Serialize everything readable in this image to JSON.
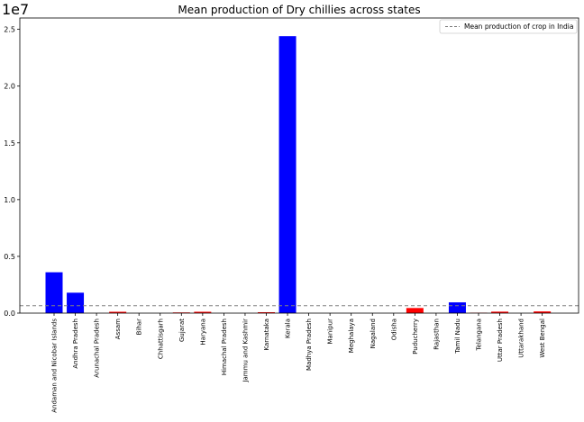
{
  "chart_data": {
    "type": "bar",
    "title": "Mean production of Dry chillies across states",
    "xlabel": "",
    "ylabel": "",
    "y_scale_label": "1e7",
    "y_scale_factor": 10000000,
    "ylim": [
      0,
      2.6
    ],
    "yticks": [
      "0.0",
      "0.5",
      "1.0",
      "1.5",
      "2.0",
      "2.5"
    ],
    "categories": [
      "Andaman and Nicobar Islands",
      "Andhra Pradesh",
      "Arunachal Pradesh",
      "Assam",
      "Bihar",
      "Chhattisgarh",
      "Gujarat",
      "Haryana",
      "Himachal Pradesh",
      "Jammu and Kashmir",
      "Karnataka",
      "Kerala",
      "Madhya Pradesh",
      "Manipur",
      "Meghalaya",
      "Nagaland",
      "Odisha",
      "Puducherry",
      "Rajasthan",
      "Tamil Nadu",
      "Telangana",
      "Uttar Pradesh",
      "Uttarakhand",
      "West Bengal"
    ],
    "values": [
      0.36,
      0.18,
      0,
      0.012,
      0,
      0,
      0.006,
      0.012,
      0,
      0,
      0.008,
      2.44,
      0,
      0,
      0,
      0,
      0,
      0.045,
      0,
      0.095,
      0.004,
      0.013,
      0,
      0.015
    ],
    "bar_colors": [
      "#0000ff",
      "#0000ff",
      "#0000ff",
      "#ff0000",
      "#ff0000",
      "#ff0000",
      "#ff0000",
      "#ff0000",
      "#ff0000",
      "#ff0000",
      "#ff0000",
      "#0000ff",
      "#ff0000",
      "#ff0000",
      "#ff0000",
      "#ff0000",
      "#ff0000",
      "#ff0000",
      "#ff0000",
      "#0000ff",
      "#ff0000",
      "#ff0000",
      "#ff0000",
      "#ff0000"
    ],
    "reference_line": {
      "label": "Mean production of crop in India",
      "value": 0.065,
      "color": "#808080",
      "style": "dashed"
    },
    "legend_position": "top-right",
    "grid": false
  }
}
